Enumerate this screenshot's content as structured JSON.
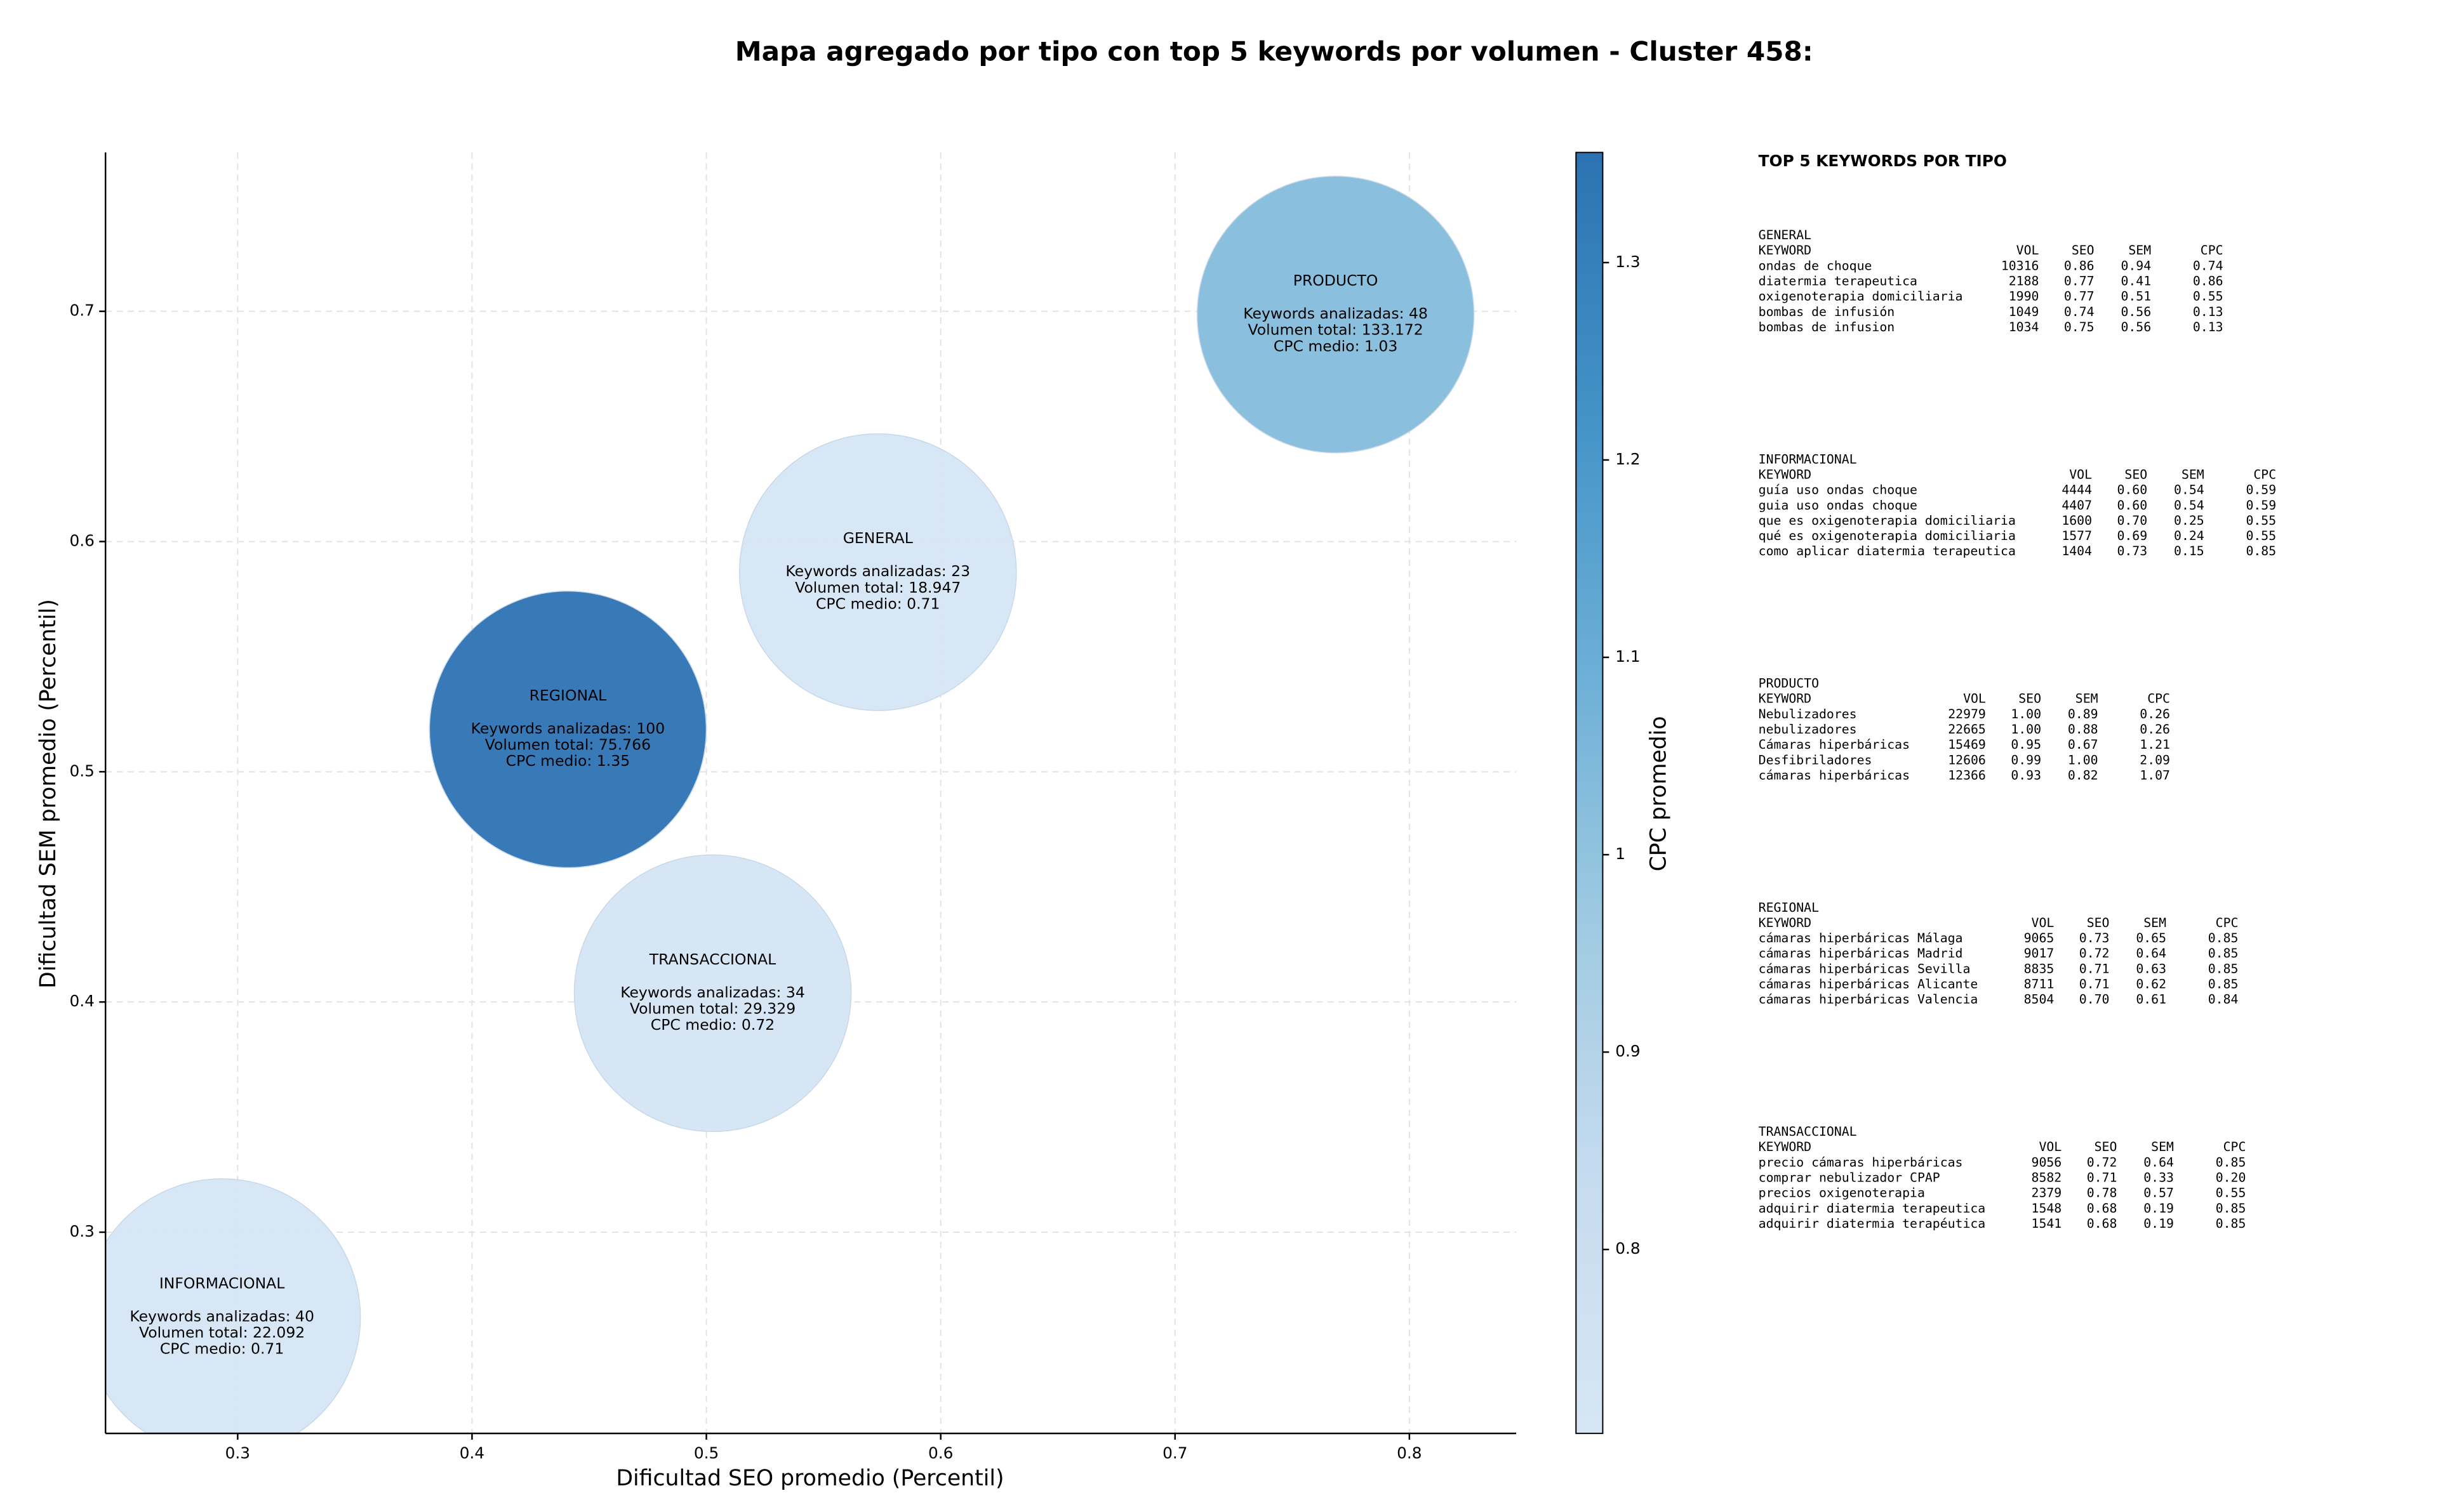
{
  "chart_data": {
    "type": "bubble",
    "title": "Mapa agregado por tipo con top 5 keywords por volumen - Cluster 458:",
    "x_label": "Dificultad SEO promedio (Percentil)",
    "y_label": "Dificultad SEM promedio (Percentil)",
    "xlim": [
      0.2436,
      0.8456
    ],
    "ylim": [
      0.2126,
      0.769
    ],
    "xticks": [
      0.3,
      0.4,
      0.5,
      0.6,
      0.7,
      0.8
    ],
    "yticks": [
      0.3,
      0.4,
      0.5,
      0.6,
      0.7
    ],
    "grid": true,
    "colorbar": {
      "label": "CPC promedio",
      "clim": [
        0.7068,
        1.3558
      ],
      "ticks": [
        0.8,
        0.9,
        1.0,
        1.1,
        1.2,
        1.3
      ],
      "colormap": [
        "#d6e6f4",
        "#c6dbef",
        "#9ecae1",
        "#6baed6",
        "#4292c6",
        "#2c72b2"
      ]
    },
    "points": [
      {
        "name": "PRODUCTO",
        "x": 0.7685,
        "y": 0.6986,
        "cpc": 1.03,
        "lines": [
          "Keywords analizadas: 48",
          "Volumen total: 133.172",
          "CPC medio: 1.03"
        ]
      },
      {
        "name": "GENERAL",
        "x": 0.5732,
        "y": 0.5867,
        "cpc": 0.71,
        "lines": [
          "Keywords analizadas: 23",
          "Volumen total: 18.947",
          "CPC medio: 0.71"
        ]
      },
      {
        "name": "REGIONAL",
        "x": 0.4409,
        "y": 0.5184,
        "cpc": 1.35,
        "lines": [
          "Keywords analizadas: 100",
          "Volumen total: 75.766",
          "CPC medio: 1.35"
        ]
      },
      {
        "name": "TRANSACCIONAL",
        "x": 0.5027,
        "y": 0.4038,
        "cpc": 0.72,
        "lines": [
          "Keywords analizadas: 34",
          "Volumen total: 29.329",
          "CPC medio: 0.72"
        ]
      },
      {
        "name": "INFORMACIONAL",
        "x": 0.2933,
        "y": 0.2631,
        "cpc": 0.71,
        "lines": [
          "Keywords analizadas: 40",
          "Volumen total: 22.092",
          "CPC medio: 0.71"
        ]
      }
    ],
    "panel_title": "TOP 5 KEYWORDS POR TIPO",
    "keyword_tables": [
      {
        "title": "GENERAL",
        "columns": [
          "KEYWORD",
          "VOL",
          "SEO",
          "SEM",
          "CPC"
        ],
        "rows": [
          [
            "ondas de choque",
            "10316",
            "0.86",
            "0.94",
            "0.74"
          ],
          [
            "diatermia terapeutica",
            "2188",
            "0.77",
            "0.41",
            "0.86"
          ],
          [
            "oxigenoterapia domiciliaria",
            "1990",
            "0.77",
            "0.51",
            "0.55"
          ],
          [
            "bombas de infusión",
            "1049",
            "0.74",
            "0.56",
            "0.13"
          ],
          [
            "bombas de infusion",
            "1034",
            "0.75",
            "0.56",
            "0.13"
          ]
        ]
      },
      {
        "title": "INFORMACIONAL",
        "columns": [
          "KEYWORD",
          "VOL",
          "SEO",
          "SEM",
          "CPC"
        ],
        "rows": [
          [
            "guía uso ondas choque",
            "4444",
            "0.60",
            "0.54",
            "0.59"
          ],
          [
            "guia uso ondas choque",
            "4407",
            "0.60",
            "0.54",
            "0.59"
          ],
          [
            "que es oxigenoterapia domiciliaria",
            "1600",
            "0.70",
            "0.25",
            "0.55"
          ],
          [
            "qué es oxigenoterapia domiciliaria",
            "1577",
            "0.69",
            "0.24",
            "0.55"
          ],
          [
            "como aplicar diatermia terapeutica",
            "1404",
            "0.73",
            "0.15",
            "0.85"
          ]
        ]
      },
      {
        "title": "PRODUCTO",
        "columns": [
          "KEYWORD",
          "VOL",
          "SEO",
          "SEM",
          "CPC"
        ],
        "rows": [
          [
            "Nebulizadores",
            "22979",
            "1.00",
            "0.89",
            "0.26"
          ],
          [
            "nebulizadores",
            "22665",
            "1.00",
            "0.88",
            "0.26"
          ],
          [
            "Cámaras hiperbáricas",
            "15469",
            "0.95",
            "0.67",
            "1.21"
          ],
          [
            "Desfibriladores",
            "12606",
            "0.99",
            "1.00",
            "2.09"
          ],
          [
            "cámaras hiperbáricas",
            "12366",
            "0.93",
            "0.82",
            "1.07"
          ]
        ]
      },
      {
        "title": "REGIONAL",
        "columns": [
          "KEYWORD",
          "VOL",
          "SEO",
          "SEM",
          "CPC"
        ],
        "rows": [
          [
            "cámaras hiperbáricas Málaga",
            "9065",
            "0.73",
            "0.65",
            "0.85"
          ],
          [
            "cámaras hiperbáricas Madrid",
            "9017",
            "0.72",
            "0.64",
            "0.85"
          ],
          [
            "cámaras hiperbáricas Sevilla",
            "8835",
            "0.71",
            "0.63",
            "0.85"
          ],
          [
            "cámaras hiperbáricas Alicante",
            "8711",
            "0.71",
            "0.62",
            "0.85"
          ],
          [
            "cámaras hiperbáricas Valencia",
            "8504",
            "0.70",
            "0.61",
            "0.84"
          ]
        ]
      },
      {
        "title": "TRANSACCIONAL",
        "columns": [
          "KEYWORD",
          "VOL",
          "SEO",
          "SEM",
          "CPC"
        ],
        "rows": [
          [
            "precio cámaras hiperbáricas",
            "9056",
            "0.72",
            "0.64",
            "0.85"
          ],
          [
            "comprar nebulizador CPAP",
            "8582",
            "0.71",
            "0.33",
            "0.20"
          ],
          [
            "precios oxigenoterapia",
            "2379",
            "0.78",
            "0.57",
            "0.55"
          ],
          [
            "adquirir diatermia terapeutica",
            "1548",
            "0.68",
            "0.19",
            "0.85"
          ],
          [
            "adquirir diatermia terapéutica",
            "1541",
            "0.68",
            "0.19",
            "0.85"
          ]
        ]
      }
    ]
  }
}
